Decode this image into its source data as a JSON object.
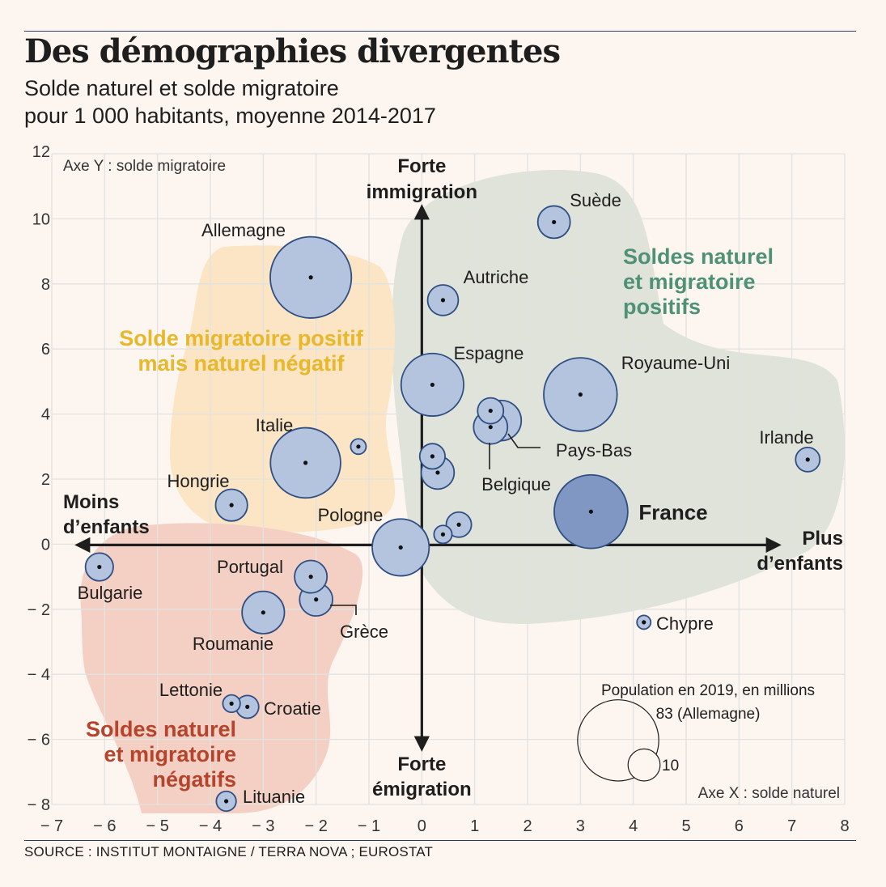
{
  "title": "Des démographies divergentes",
  "subtitle_line1": "Solde naturel et solde migratoire",
  "subtitle_line2": "pour 1 000 habitants, moyenne 2014-2017",
  "source": "SOURCE : INSTITUT MONTAIGNE / TERRA NOVA ; EUROSTAT",
  "colors": {
    "bubble_fill": "#b4c4df",
    "bubble_stroke": "#2f4e82",
    "france_fill": "#7f97c2",
    "green_zone": "#dfe3d9",
    "yellow_zone": "#fbe5c4",
    "red_zone": "#f3d0c3",
    "green_text": "#4f9174",
    "yellow_text": "#e8b72a",
    "red_text": "#b5442d"
  },
  "chart_data": {
    "type": "scatter",
    "xlabel": "Axe X : solde naturel",
    "ylabel": "Axe Y : solde migratoire",
    "xlim": [
      -7,
      8
    ],
    "ylim": [
      -8,
      12
    ],
    "xticks": [
      "− 7",
      "− 6",
      "− 5",
      "− 4",
      "− 3",
      "− 2",
      "− 1",
      "0",
      "1",
      "2",
      "3",
      "4",
      "5",
      "6",
      "7",
      "8"
    ],
    "yticks": [
      "12",
      "10",
      "8",
      "6",
      "4",
      "2",
      "0",
      "− 2",
      "− 4",
      "− 6",
      "− 8"
    ],
    "grid": true,
    "axis_arrows": {
      "up": [
        "Forte",
        "immigration"
      ],
      "down": [
        "Forte",
        "émigration"
      ],
      "left": [
        "Moins",
        "d’enfants"
      ],
      "right": [
        "Plus",
        "d’enfants"
      ]
    },
    "zones": [
      {
        "label": [
          "Soldes naturel",
          "et migratoire",
          "positifs"
        ],
        "color": "green"
      },
      {
        "label": [
          "Solde migratoire positif",
          "mais naturel négatif"
        ],
        "color": "yellow"
      },
      {
        "label": [
          "Soldes naturel",
          "et migratoire",
          "négatifs"
        ],
        "color": "red"
      }
    ],
    "size_legend": {
      "title": "Population en 2019, en millions",
      "big_label": "83 (Allemagne)",
      "small_label": "10",
      "big_value": 83,
      "small_value": 10
    },
    "points": [
      {
        "label": "Allemagne",
        "x": -2.1,
        "y": 8.2,
        "pop": 83
      },
      {
        "label": "Suède",
        "x": 2.5,
        "y": 9.9,
        "pop": 10.2
      },
      {
        "label": "Autriche",
        "x": 0.4,
        "y": 7.5,
        "pop": 8.9
      },
      {
        "label": "Espagne",
        "x": 0.2,
        "y": 4.9,
        "pop": 47
      },
      {
        "label": "Royaume-Uni",
        "x": 3.0,
        "y": 4.6,
        "pop": 66.6
      },
      {
        "label": "",
        "x": 1.3,
        "y": 4.1,
        "pop": 5.8
      },
      {
        "label": "Pays-Bas",
        "x": 1.5,
        "y": 3.8,
        "pop": 17.3
      },
      {
        "label": "Belgique",
        "x": 1.3,
        "y": 3.6,
        "pop": 11.5
      },
      {
        "label": "Irlande",
        "x": 7.3,
        "y": 2.6,
        "pop": 4.9
      },
      {
        "label": "Italie",
        "x": -2.2,
        "y": 2.5,
        "pop": 60.4
      },
      {
        "label": "",
        "x": -1.2,
        "y": 3.0,
        "pop": 1.3
      },
      {
        "label": "",
        "x": 0.2,
        "y": 2.7,
        "pop": 5.5
      },
      {
        "label": "",
        "x": 0.3,
        "y": 2.2,
        "pop": 10.7
      },
      {
        "label": "Hongrie",
        "x": -3.6,
        "y": 1.2,
        "pop": 9.8
      },
      {
        "label": "France",
        "x": 3.2,
        "y": 1.0,
        "pop": 67
      },
      {
        "label": "",
        "x": 0.7,
        "y": 0.6,
        "pop": 5.4
      },
      {
        "label": "",
        "x": 0.4,
        "y": 0.3,
        "pop": 2.1
      },
      {
        "label": "Pologne",
        "x": -0.4,
        "y": -0.1,
        "pop": 38
      },
      {
        "label": "Bulgarie",
        "x": -6.1,
        "y": -0.7,
        "pop": 7.0
      },
      {
        "label": "Portugal",
        "x": -2.1,
        "y": -1.0,
        "pop": 10.3
      },
      {
        "label": "Grèce",
        "x": -2.0,
        "y": -1.7,
        "pop": 10.7
      },
      {
        "label": "Roumanie",
        "x": -3.0,
        "y": -2.1,
        "pop": 19.4
      },
      {
        "label": "Chypre",
        "x": 4.2,
        "y": -2.4,
        "pop": 0.9
      },
      {
        "label": "Lettonie",
        "x": -3.6,
        "y": -4.9,
        "pop": 1.9
      },
      {
        "label": "Croatie",
        "x": -3.3,
        "y": -5.0,
        "pop": 4.1
      },
      {
        "label": "Lituanie",
        "x": -3.7,
        "y": -7.9,
        "pop": 2.8
      }
    ]
  }
}
